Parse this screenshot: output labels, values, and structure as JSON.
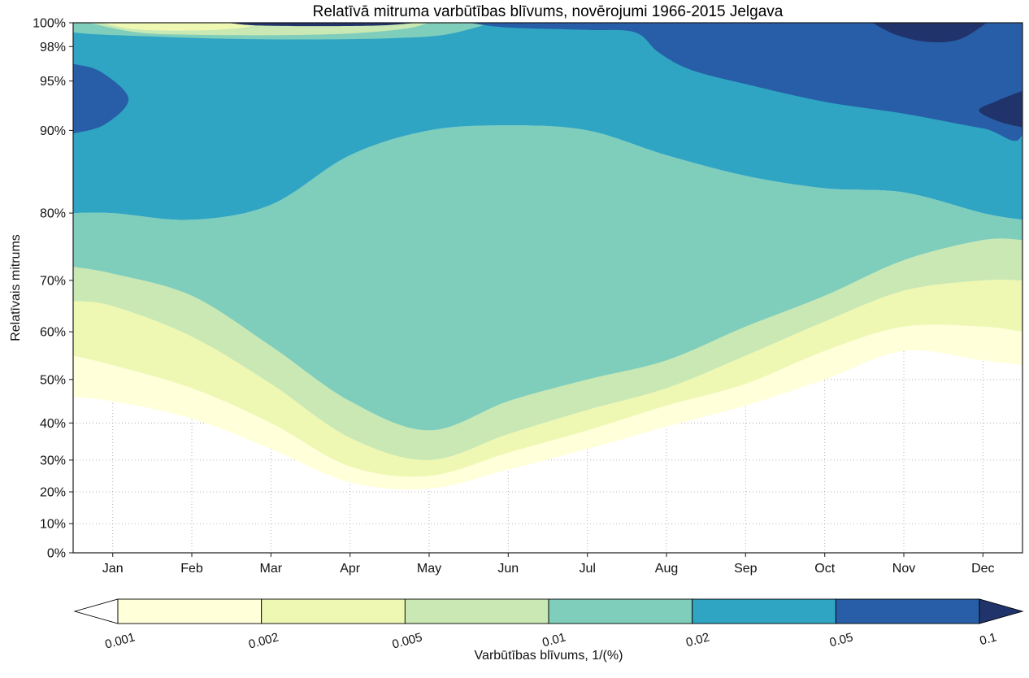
{
  "chart_data": {
    "type": "filled_contour",
    "title": "Relatīvā mitruma varbūtības blīvums, novērojumi 1966-2015 Jelgava",
    "ylabel": "Relatīvais mitrums",
    "colorbar_label": "Varbūtības blīvums, 1/(%)",
    "x_categories": [
      "Jan",
      "Feb",
      "Mar",
      "Apr",
      "May",
      "Jun",
      "Jul",
      "Aug",
      "Sep",
      "Oct",
      "Nov",
      "Dec"
    ],
    "y_tick_labels": [
      "0%",
      "10%",
      "20%",
      "30%",
      "40%",
      "50%",
      "60%",
      "70%",
      "80%",
      "90%",
      "95%",
      "98%",
      "100%"
    ],
    "y_tick_values": [
      0,
      10,
      20,
      30,
      40,
      50,
      60,
      70,
      80,
      90,
      95,
      98,
      100
    ],
    "y_scale": [
      [
        0,
        0
      ],
      [
        10,
        0.055
      ],
      [
        20,
        0.115
      ],
      [
        30,
        0.175
      ],
      [
        40,
        0.245
      ],
      [
        50,
        0.327
      ],
      [
        60,
        0.417
      ],
      [
        70,
        0.514
      ],
      [
        80,
        0.641
      ],
      [
        90,
        0.797
      ],
      [
        95,
        0.89
      ],
      [
        98,
        0.955
      ],
      [
        100,
        1
      ]
    ],
    "ylim": [
      0,
      100
    ],
    "grid": "dotted",
    "levels": [
      0.001,
      0.002,
      0.005,
      0.01,
      0.02,
      0.05,
      0.1
    ],
    "level_labels": [
      "0.001",
      "0.002",
      "0.005",
      "0.01",
      "0.02",
      "0.05",
      "0.1"
    ],
    "colors": {
      "under_0.001": "#ffffff",
      "band_0.001_0.002": "#ffffd9",
      "band_0.002_0.005": "#eef8b3",
      "band_0.005_0.01": "#c9e8b3",
      "band_0.01_0.02": "#7fcdbb",
      "band_0.02_0.05": "#2fa5c3",
      "band_0.05_0.1": "#275ea7",
      "band_over_0.1": "#20336b"
    },
    "x_positions": [
      -0.5,
      0,
      1,
      2,
      3,
      4,
      5,
      6,
      7,
      8,
      9,
      10,
      11,
      11.5
    ],
    "lower_boundaries": {
      "0.001": [
        46,
        45,
        41,
        33,
        23,
        21,
        27,
        33,
        39,
        44,
        50,
        56,
        54,
        53
      ],
      "0.002": [
        55,
        53,
        48,
        40,
        28,
        25,
        32,
        38,
        44,
        49,
        56,
        61,
        61,
        60
      ],
      "0.005": [
        66,
        65,
        59,
        49,
        36,
        30,
        37,
        43,
        48,
        55,
        62,
        68,
        70,
        70
      ],
      "0.01": [
        72,
        71,
        67,
        57,
        45,
        38,
        45,
        50,
        54,
        61,
        67,
        73,
        76,
        76
      ],
      "0.02": [
        80,
        80,
        79,
        81,
        87,
        90,
        90.5,
        90,
        87,
        84.5,
        83,
        82.5,
        80,
        79
      ]
    },
    "patches": [
      {
        "name": "top-strip-teal",
        "level": "0.01-0.02",
        "color_key": "band_0.01_0.02",
        "points": [
          [
            -0.5,
            100
          ],
          [
            -0.5,
            99.2
          ],
          [
            0.5,
            98.85
          ],
          [
            1.5,
            98.65
          ],
          [
            2.5,
            98.6
          ],
          [
            3.5,
            98.7
          ],
          [
            4.2,
            99.0
          ],
          [
            4.8,
            100
          ]
        ]
      },
      {
        "name": "top-strip-green",
        "level": "0.005-0.01",
        "color_key": "band_0.005_0.01",
        "points": [
          [
            -0.3,
            100
          ],
          [
            0.3,
            99.2
          ],
          [
            1.0,
            99.0
          ],
          [
            2.0,
            98.95
          ],
          [
            3.0,
            99.1
          ],
          [
            3.7,
            99.5
          ],
          [
            4.0,
            100
          ]
        ]
      },
      {
        "name": "top-strip-pale",
        "level": "0.002-0.005",
        "color_key": "band_0.002_0.005",
        "points": [
          [
            -0.15,
            100
          ],
          [
            0.3,
            99.45
          ],
          [
            1.0,
            99.35
          ],
          [
            1.6,
            99.55
          ],
          [
            1.9,
            100
          ]
        ]
      },
      {
        "name": "top-strip-navy",
        "level": "over-0.1",
        "color_key": "band_over_0.1",
        "points": [
          [
            1.45,
            100
          ],
          [
            1.8,
            99.78
          ],
          [
            2.6,
            99.72
          ],
          [
            3.4,
            99.78
          ],
          [
            3.85,
            100
          ]
        ]
      },
      {
        "name": "jan-high-dark",
        "level": "0.05-0.1",
        "color_key": "band_0.05_0.1",
        "points": [
          [
            -0.5,
            96.5
          ],
          [
            -0.15,
            95.8
          ],
          [
            0.2,
            93.2
          ],
          [
            -0.1,
            90.6
          ],
          [
            -0.5,
            89.6
          ]
        ]
      },
      {
        "name": "autumn-high-dark",
        "level": "0.05-0.1",
        "color_key": "band_0.05_0.1",
        "points": [
          [
            4.5,
            100
          ],
          [
            5.0,
            99.6
          ],
          [
            6.0,
            99.4
          ],
          [
            6.6,
            99.2
          ],
          [
            6.9,
            97.5
          ],
          [
            7.3,
            96.0
          ],
          [
            8.0,
            94.7
          ],
          [
            9.0,
            92.9
          ],
          [
            10.0,
            91.7
          ],
          [
            11.0,
            90.2
          ],
          [
            11.5,
            89.6
          ],
          [
            11.5,
            100
          ]
        ]
      },
      {
        "name": "nov-top-navy",
        "level": "over-0.1",
        "color_key": "band_over_0.1",
        "points": [
          [
            9.6,
            100
          ],
          [
            9.9,
            99.0
          ],
          [
            10.3,
            98.4
          ],
          [
            10.7,
            98.6
          ],
          [
            11.05,
            100
          ]
        ]
      },
      {
        "name": "dec-edge-navy",
        "level": "over-0.1",
        "color_key": "band_over_0.1",
        "points": [
          [
            11.5,
            94.0
          ],
          [
            11.15,
            92.9
          ],
          [
            10.95,
            92.0
          ],
          [
            11.2,
            90.9
          ],
          [
            11.5,
            90.3
          ]
        ]
      }
    ]
  }
}
